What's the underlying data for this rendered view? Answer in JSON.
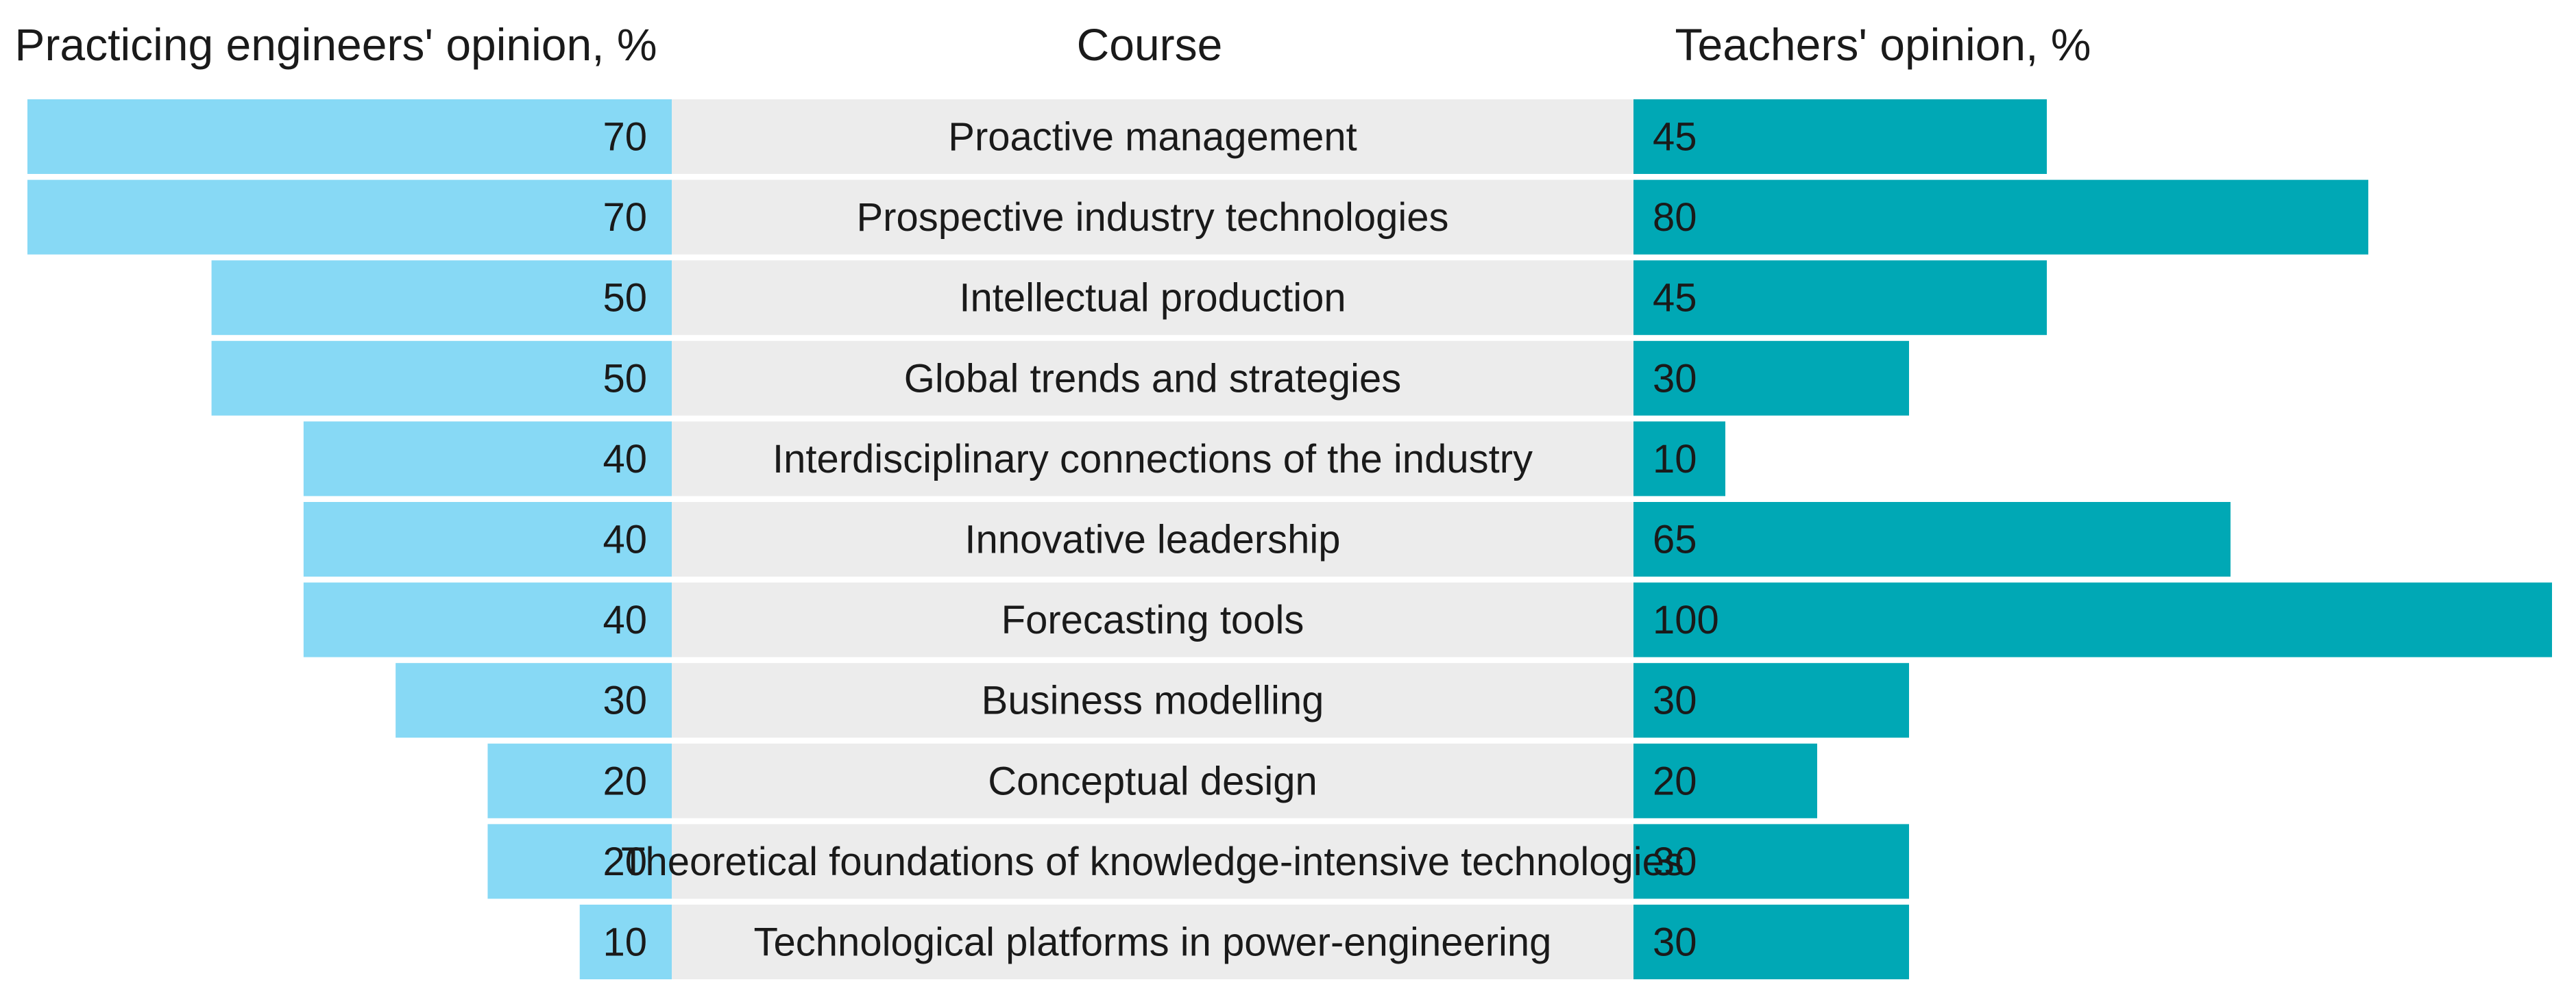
{
  "chart_data": {
    "type": "bar",
    "left_header": "Practicing engineers' opinion, %",
    "center_header": "Course",
    "right_header": "Teachers' opinion, %",
    "categories": [
      "Proactive management",
      "Prospective industry technologies",
      "Intellectual production",
      "Global trends and strategies",
      "Interdisciplinary connections of the industry",
      "Innovative leadership",
      "Forecasting tools",
      "Business modelling",
      "Conceptual design",
      "Theoretical foundations of knowledge-intensive technologies",
      "Technological platforms in power-engineering"
    ],
    "series": [
      {
        "name": "Practicing engineers' opinion, %",
        "values": [
          70,
          70,
          50,
          50,
          40,
          40,
          40,
          30,
          20,
          20,
          10
        ],
        "color": "#87d9f5"
      },
      {
        "name": "Teachers' opinion, %",
        "values": [
          45,
          80,
          45,
          30,
          10,
          65,
          100,
          30,
          20,
          30,
          30
        ],
        "color": "#00a8b5"
      }
    ],
    "left_axis_range": [
      0,
      70
    ],
    "right_axis_range": [
      0,
      100
    ],
    "center_band_color": "#ececec",
    "grid": false,
    "legend": "none"
  }
}
